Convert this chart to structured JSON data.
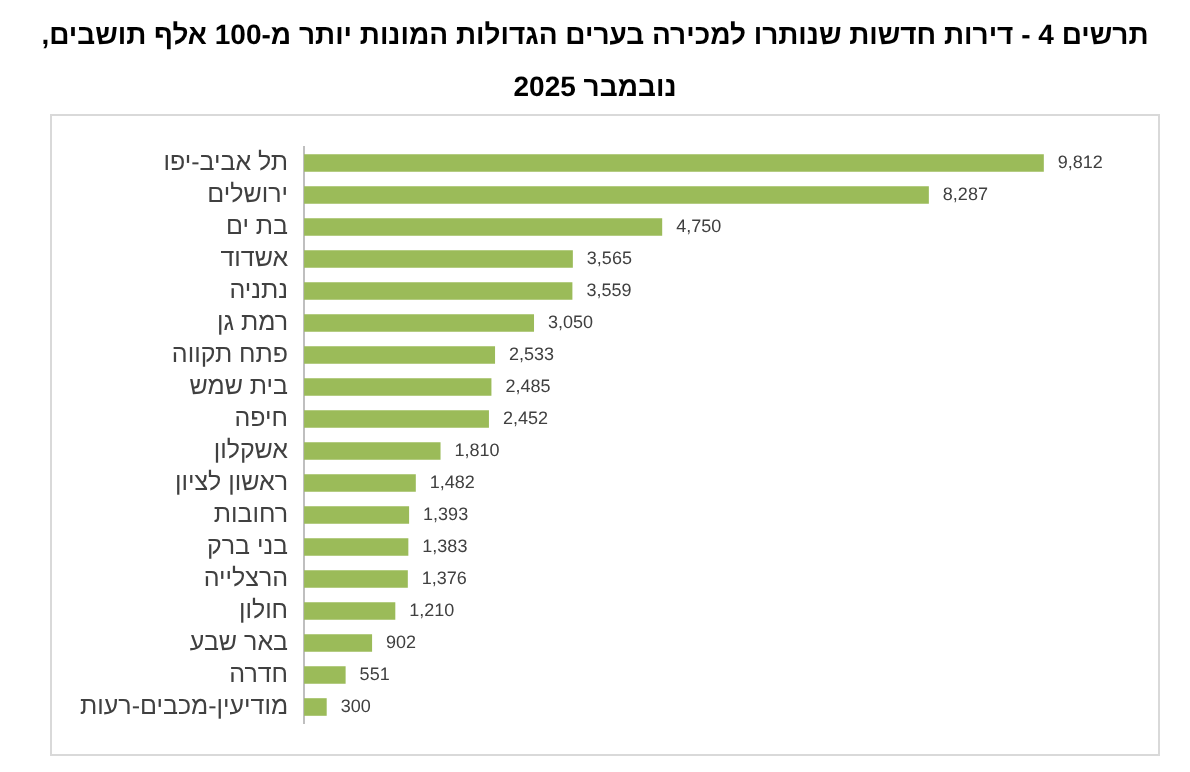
{
  "chart_data": {
    "type": "bar",
    "orientation": "horizontal",
    "title": "תרשים 4 - דירות חדשות שנותרו למכירה בערים הגדולות המונות יותר מ-100 אלף תושבים, נובמבר 2025",
    "categories": [
      "תל אביב-יפו",
      "ירושלים",
      "בת ים",
      "אשדוד",
      "נתניה",
      "רמת גן",
      "פתח תקווה",
      "בית שמש",
      "חיפה",
      "אשקלון",
      "ראשון לציון",
      "רחובות",
      "בני ברק",
      "הרצלייה",
      "חולון",
      "באר שבע",
      "חדרה",
      "מודיעין-מכבים-רעות"
    ],
    "values": [
      9812,
      8287,
      4750,
      3565,
      3559,
      3050,
      2533,
      2485,
      2452,
      1810,
      1482,
      1393,
      1383,
      1376,
      1210,
      902,
      551,
      300
    ],
    "value_labels": [
      "9,812",
      "8,287",
      "4,750",
      "3,565",
      "3,559",
      "3,050",
      "2,533",
      "2,485",
      "2,452",
      "1,810",
      "1,482",
      "1,393",
      "1,383",
      "1,376",
      "1,210",
      "902",
      "551",
      "300"
    ],
    "color": "#9bbb59"
  }
}
